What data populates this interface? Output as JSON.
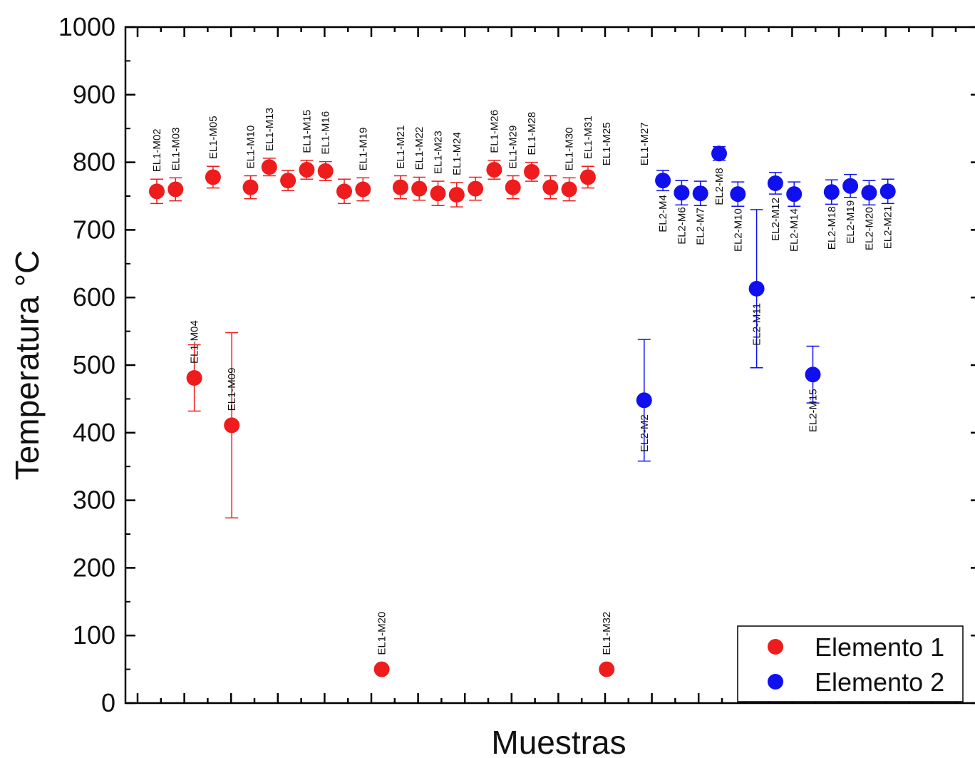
{
  "chart_data": {
    "type": "scatter",
    "title": "",
    "xlabel": "Muestras",
    "ylabel": "Temperatura °C",
    "ylim": [
      0,
      1000
    ],
    "yticks": [
      "0",
      "100",
      "200",
      "300",
      "400",
      "500",
      "600",
      "700",
      "800",
      "900",
      "1000"
    ],
    "legend_position": "bottom-right",
    "grid": false,
    "series": [
      {
        "name": "Elemento 1",
        "color": "#ee1c1c",
        "points": [
          {
            "label": "EL1-M02",
            "x": 1,
            "y": 757,
            "err": 18,
            "label_pos": "above"
          },
          {
            "label": "EL1-M03",
            "x": 2,
            "y": 760,
            "err": 17,
            "label_pos": "above"
          },
          {
            "label": "EL1-M04",
            "x": 3,
            "y": 481,
            "err": 49,
            "label_pos": "above"
          },
          {
            "label": "EL1-M05",
            "x": 4,
            "y": 778,
            "err": 16,
            "label_pos": "above"
          },
          {
            "label": "EL1-M09",
            "x": 5,
            "y": 411,
            "err": 137,
            "label_pos": "above"
          },
          {
            "label": "EL1-M10",
            "x": 6,
            "y": 763,
            "err": 17,
            "label_pos": "above"
          },
          {
            "label": "EL1-M13",
            "x": 7,
            "y": 793,
            "err": 13,
            "label_pos": "above"
          },
          {
            "label": "",
            "x": 8,
            "y": 773,
            "err": 15,
            "label_pos": "above"
          },
          {
            "label": "EL1-M15",
            "x": 9,
            "y": 789,
            "err": 14,
            "label_pos": "above"
          },
          {
            "label": "EL1-M16",
            "x": 10,
            "y": 787,
            "err": 14,
            "label_pos": "above"
          },
          {
            "label": "",
            "x": 11,
            "y": 757,
            "err": 18,
            "label_pos": "above"
          },
          {
            "label": "EL1-M19",
            "x": 12,
            "y": 760,
            "err": 17,
            "label_pos": "above"
          },
          {
            "label": "EL1-M20",
            "x": 13,
            "y": 50,
            "err": 0,
            "label_pos": "above"
          },
          {
            "label": "EL1-M21",
            "x": 14,
            "y": 763,
            "err": 17,
            "label_pos": "above"
          },
          {
            "label": "EL1-M22",
            "x": 15,
            "y": 761,
            "err": 17,
            "label_pos": "above"
          },
          {
            "label": "EL1-M23",
            "x": 16,
            "y": 754,
            "err": 18,
            "label_pos": "above"
          },
          {
            "label": "EL1-M24",
            "x": 17,
            "y": 752,
            "err": 18,
            "label_pos": "above"
          },
          {
            "label": "",
            "x": 18,
            "y": 761,
            "err": 17,
            "label_pos": "above"
          },
          {
            "label": "EL1-M26",
            "x": 19,
            "y": 789,
            "err": 14,
            "label_pos": "above"
          },
          {
            "label": "EL1-M29",
            "x": 20,
            "y": 763,
            "err": 17,
            "label_pos": "above"
          },
          {
            "label": "EL1-M28",
            "x": 21,
            "y": 786,
            "err": 14,
            "label_pos": "above"
          },
          {
            "label": "",
            "x": 22,
            "y": 763,
            "err": 17,
            "label_pos": "above"
          },
          {
            "label": "EL1-M30",
            "x": 23,
            "y": 760,
            "err": 17,
            "label_pos": "above"
          },
          {
            "label": "EL1-M31",
            "x": 24,
            "y": 778,
            "err": 16,
            "label_pos": "above"
          },
          {
            "label": "EL1-M25",
            "x": 25,
            "y": 793,
            "err": 0,
            "label_pos": "above",
            "hidden": true
          },
          {
            "label": "EL1-M32",
            "x": 25,
            "y": 50,
            "err": 0,
            "label_pos": "above"
          },
          {
            "label": "EL1-M27",
            "x": 27,
            "y": 793,
            "err": 0,
            "label_pos": "above",
            "hidden": true
          }
        ]
      },
      {
        "name": "Elemento 2",
        "color": "#1010ee",
        "points": [
          {
            "label": "EL2-M2",
            "x": 27,
            "y": 448,
            "err": 90,
            "label_pos": "below"
          },
          {
            "label": "EL2-M4",
            "x": 28,
            "y": 773,
            "err": 15,
            "label_pos": "below"
          },
          {
            "label": "EL2-M6",
            "x": 29,
            "y": 755,
            "err": 18,
            "label_pos": "below"
          },
          {
            "label": "EL2-M7",
            "x": 30,
            "y": 754,
            "err": 18,
            "label_pos": "below"
          },
          {
            "label": "EL2-M8",
            "x": 31,
            "y": 813,
            "err": 10,
            "label_pos": "below"
          },
          {
            "label": "EL2-M10",
            "x": 32,
            "y": 753,
            "err": 18,
            "label_pos": "below"
          },
          {
            "label": "EL2-M11",
            "x": 33,
            "y": 613,
            "err": 117,
            "label_pos": "below"
          },
          {
            "label": "EL2-M12",
            "x": 34,
            "y": 769,
            "err": 16,
            "label_pos": "below"
          },
          {
            "label": "EL2-M14",
            "x": 35,
            "y": 753,
            "err": 18,
            "label_pos": "below"
          },
          {
            "label": "EL2-M15",
            "x": 36,
            "y": 486,
            "err": 42,
            "label_pos": "below"
          },
          {
            "label": "EL2-M18",
            "x": 37,
            "y": 756,
            "err": 18,
            "label_pos": "below"
          },
          {
            "label": "EL2-M19",
            "x": 38,
            "y": 765,
            "err": 17,
            "label_pos": "below"
          },
          {
            "label": "EL2-M20",
            "x": 39,
            "y": 755,
            "err": 18,
            "label_pos": "below"
          },
          {
            "label": "EL2-M21",
            "x": 40,
            "y": 757,
            "err": 18,
            "label_pos": "below"
          }
        ]
      }
    ]
  }
}
